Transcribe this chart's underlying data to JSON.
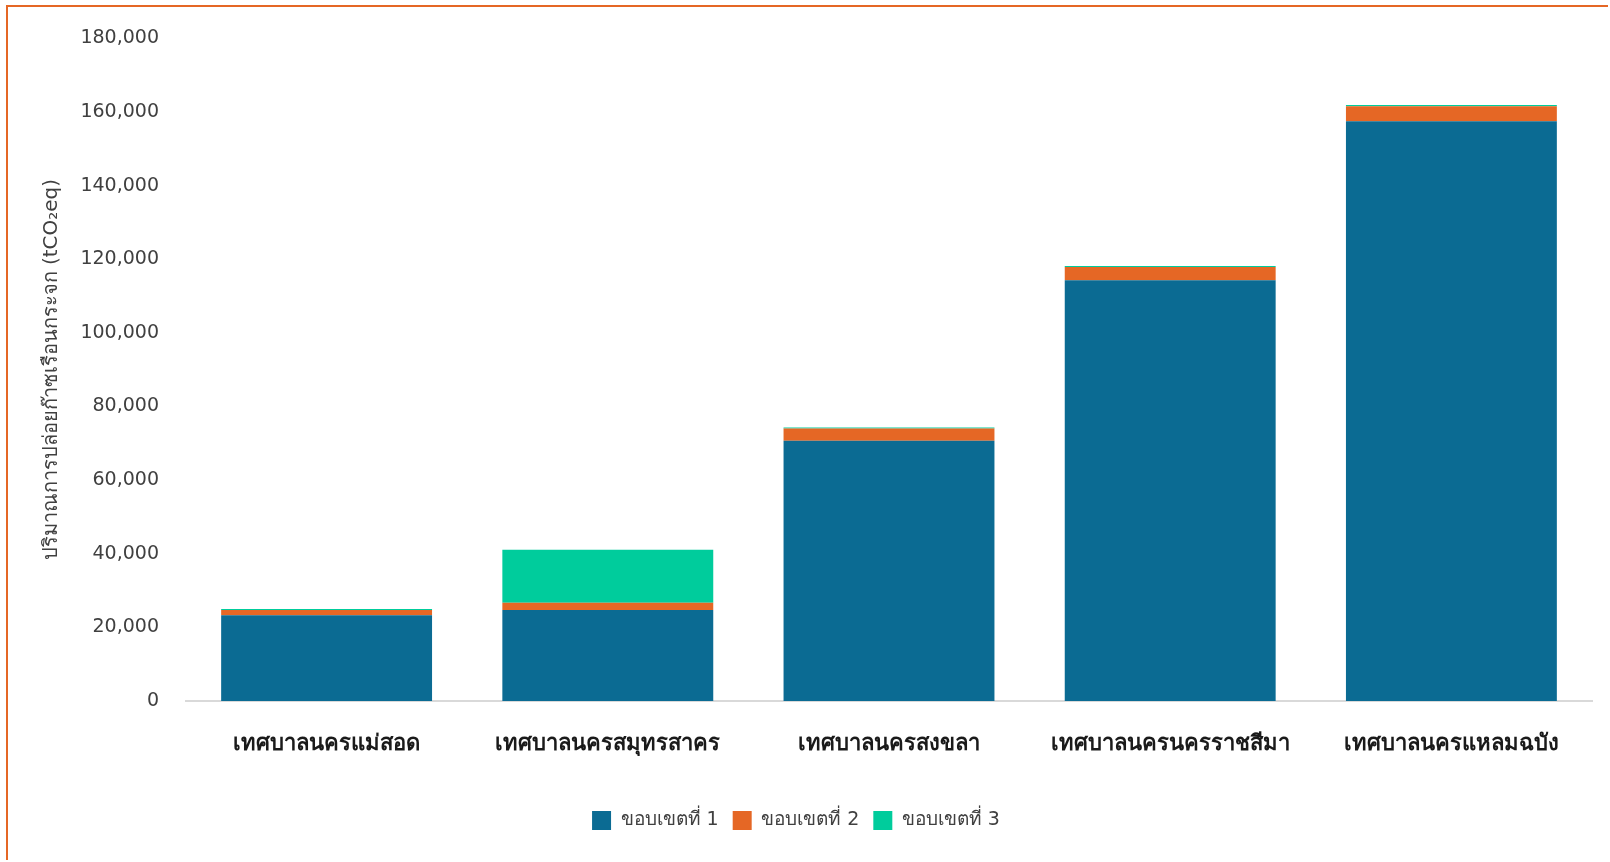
{
  "chart_data": {
    "type": "bar",
    "stacked": true,
    "ylabel": "ปริมาณการปล่อยก๊าซเรือนกระจก (tCO₂eq)",
    "categories": [
      "เทศบาลนครแม่สอด",
      "เทศบาลนครสมุทรสาคร",
      "เทศบาลนครสงขลา",
      "เทศบาลนครนครราชสีมา",
      "เทศบาลนครแหลมฉบัง"
    ],
    "series": [
      {
        "name": "ขอบเขตที่ 1",
        "color": "#0b6b93",
        "values": [
          23300,
          24700,
          70700,
          114300,
          157500
        ]
      },
      {
        "name": "ขอบเขตที่ 2",
        "color": "#e56725",
        "values": [
          1400,
          2000,
          3300,
          3600,
          4100
        ]
      },
      {
        "name": "ขอบเขตที่ 3",
        "color": "#00cc9c",
        "values": [
          300,
          14400,
          300,
          300,
          300
        ]
      }
    ],
    "ylim": [
      0,
      180000
    ],
    "yticks": [
      0,
      {
        "value": 20000,
        "label": "20,000"
      },
      {
        "value": 40000,
        "label": "40,000"
      },
      {
        "value": 60000,
        "label": "60,000"
      },
      {
        "value": 80000,
        "label": "80,000"
      },
      {
        "value": 100000,
        "label": "100,000"
      },
      {
        "value": 120000,
        "label": "120,000"
      },
      {
        "value": 140000,
        "label": "140,000"
      },
      {
        "value": 160000,
        "label": "160,000"
      },
      {
        "value": 180000,
        "label": "180,000"
      }
    ],
    "grid": false,
    "legend": "bottom"
  }
}
